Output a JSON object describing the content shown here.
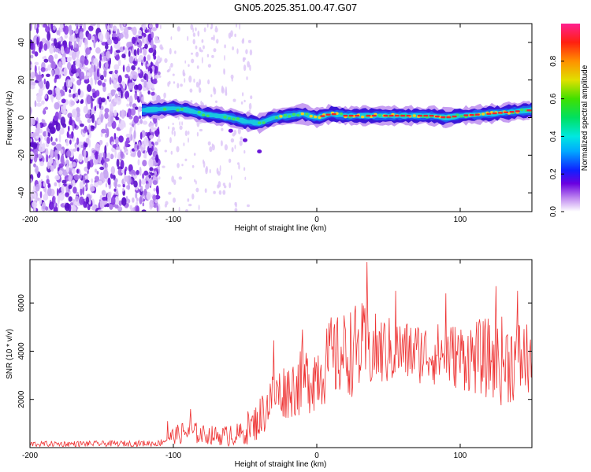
{
  "title": "GN05.2025.351.00.47.G07",
  "chart_data": [
    {
      "type": "heatmap",
      "name": "spectrogram",
      "xlabel": "Height of straight line (km)",
      "ylabel": "Frequency (Hz)",
      "xlim": [
        -200,
        150
      ],
      "ylim": [
        -50,
        50
      ],
      "x_ticks": [
        -200,
        -100,
        0,
        100
      ],
      "y_ticks": [
        -40,
        -20,
        0,
        20,
        40
      ],
      "ridge": {
        "description_points": [
          [
            -120,
            4
          ],
          [
            -100,
            5
          ],
          [
            -90,
            4
          ],
          [
            -80,
            2
          ],
          [
            -70,
            1
          ],
          [
            -60,
            0
          ],
          [
            -50,
            -2
          ],
          [
            -40,
            -3
          ],
          [
            -30,
            0
          ],
          [
            -20,
            1
          ],
          [
            -10,
            2
          ],
          [
            0,
            0
          ],
          [
            10,
            2
          ],
          [
            20,
            1
          ],
          [
            40,
            1
          ],
          [
            60,
            1
          ],
          [
            80,
            1
          ],
          [
            90,
            0
          ],
          [
            100,
            1
          ],
          [
            120,
            2
          ],
          [
            150,
            4
          ]
        ],
        "tail": [
          [
            -60,
            -7
          ],
          [
            -50,
            -12
          ],
          [
            -40,
            -18
          ]
        ]
      },
      "noise_region_x": [
        -200,
        -110
      ],
      "colorbar": {
        "label": "Normalized spectral amplitude",
        "ticks": [
          0.0,
          0.2,
          0.4,
          0.6,
          0.8
        ],
        "tick_labels": [
          "0.0",
          "0.2",
          "0.4",
          "0.6",
          "0.8"
        ],
        "range": [
          0,
          1
        ]
      }
    },
    {
      "type": "line",
      "name": "snr",
      "xlabel": "Height of straight line (km)",
      "ylabel": "SNR (10 * v/v)",
      "xlim": [
        -200,
        150
      ],
      "ylim": [
        0,
        7800
      ],
      "x_ticks": [
        -200,
        -100,
        0,
        100
      ],
      "y_ticks": [
        2000,
        4000,
        6000
      ],
      "color": "#ee3333",
      "envelope": {
        "x": [
          -200,
          -150,
          -110,
          -100,
          -90,
          -80,
          -70,
          -60,
          -50,
          -40,
          -30,
          -20,
          -10,
          0,
          10,
          20,
          30,
          40,
          60,
          80,
          100,
          120,
          130,
          150
        ],
        "mean": [
          150,
          160,
          180,
          500,
          650,
          550,
          500,
          480,
          600,
          1200,
          2200,
          2400,
          2700,
          3100,
          3600,
          3900,
          4100,
          4000,
          4000,
          3900,
          3800,
          3700,
          3600,
          3700
        ],
        "amp": [
          120,
          120,
          130,
          350,
          550,
          400,
          400,
          450,
          500,
          900,
          1100,
          1200,
          1400,
          1600,
          1700,
          1800,
          2000,
          1600,
          1300,
          1300,
          1400,
          1700,
          1900,
          1600
        ]
      },
      "peaks": [
        [
          -104,
          1100
        ],
        [
          -88,
          1600
        ],
        [
          -60,
          900
        ],
        [
          -48,
          1500
        ],
        [
          -30,
          4450
        ],
        [
          -10,
          4900
        ],
        [
          10,
          5400
        ],
        [
          35,
          7700
        ],
        [
          55,
          6500
        ],
        [
          90,
          6400
        ],
        [
          125,
          6700
        ],
        [
          140,
          6500
        ]
      ]
    }
  ],
  "colors": {
    "line": "#ee3333",
    "noise": "#8a2be2",
    "ridge_edge": "#3a16d8",
    "ridge_mid": "#18c8e0",
    "ridge_peak": "#ee2233"
  }
}
